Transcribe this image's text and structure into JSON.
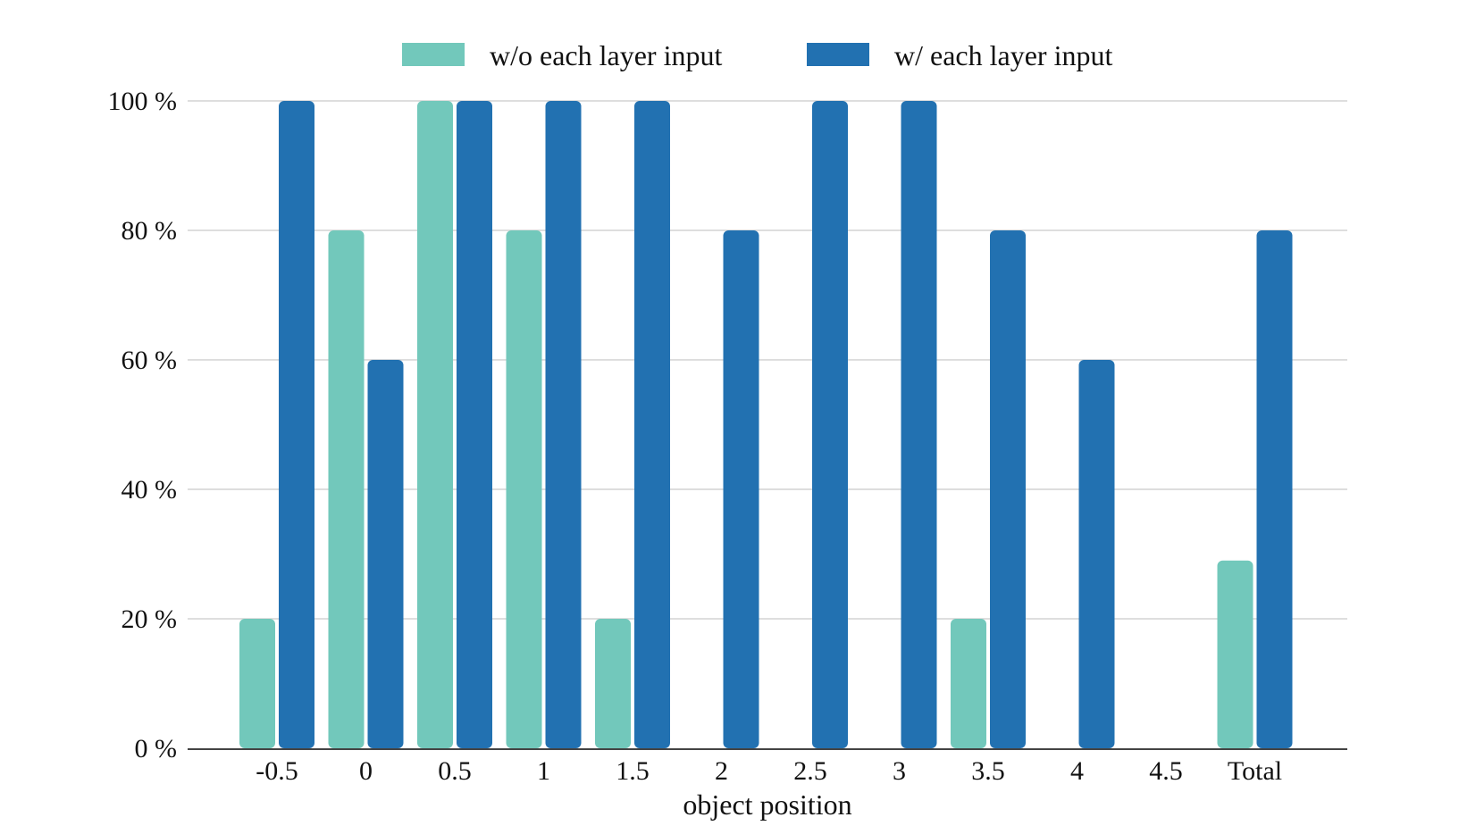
{
  "chart_data": {
    "type": "bar",
    "title": "",
    "xlabel": "object position",
    "ylabel": "",
    "categories": [
      "-0.5",
      "0",
      "0.5",
      "1",
      "1.5",
      "2",
      "2.5",
      "3",
      "3.5",
      "4",
      "4.5",
      "Total"
    ],
    "series": [
      {
        "name": "w/o each layer input",
        "color": "#72c8bb",
        "values": [
          20,
          80,
          100,
          80,
          20,
          0,
          0,
          0,
          20,
          0,
          0,
          29
        ]
      },
      {
        "name": "w/ each layer input",
        "color": "#2271b1",
        "values": [
          100,
          60,
          100,
          100,
          100,
          80,
          100,
          100,
          80,
          60,
          0,
          80
        ]
      }
    ],
    "ylim": [
      0,
      100
    ],
    "yticks": [
      0,
      20,
      40,
      60,
      80,
      100
    ],
    "ytick_labels": [
      "0 %",
      "20 %",
      "40 %",
      "60 %",
      "80 %",
      "100 %"
    ],
    "grid": true,
    "legend_position": "top-center"
  }
}
